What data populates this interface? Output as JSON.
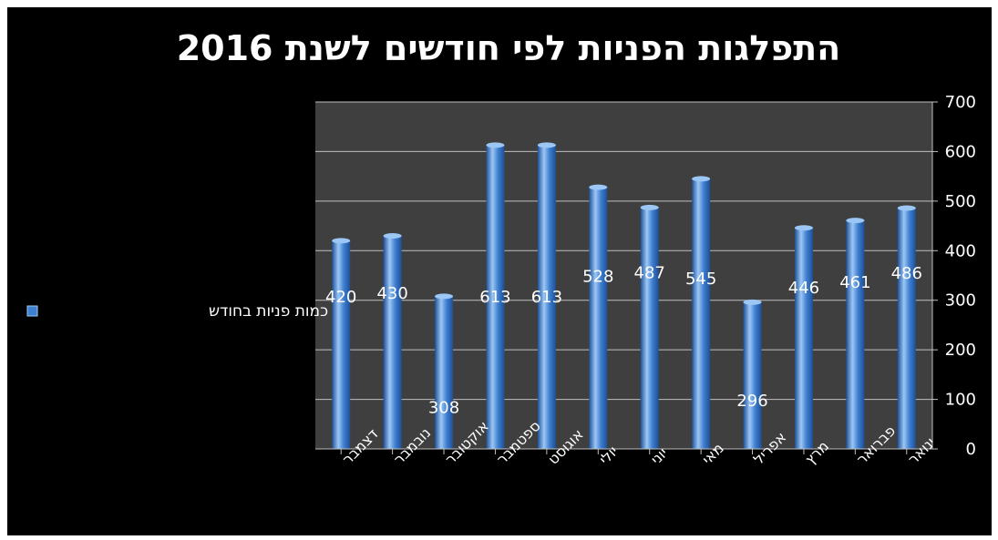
{
  "chart_data": {
    "type": "bar",
    "title": "התפלגות הפניות לפי חודשים לשנת 2016",
    "categories": [
      "ינואר",
      "פברואר",
      "מרץ",
      "אפריל",
      "מאי",
      "יוני",
      "יולי",
      "אוגוסט",
      "ספטמבר",
      "אוקטובר",
      "נובמבר",
      "דצמבר"
    ],
    "series": [
      {
        "name": "כמות פניות בחודש",
        "values": [
          486,
          461,
          446,
          296,
          545,
          487,
          528,
          613,
          613,
          308,
          430,
          420
        ]
      }
    ],
    "ylim": [
      0,
      700
    ],
    "yticks": [
      0,
      100,
      200,
      300,
      400,
      500,
      600,
      700
    ],
    "y_axis_side": "right",
    "category_order": "right-to-left",
    "grid": true,
    "legend_position": "left",
    "colors": {
      "background": "#000000",
      "plot_area": "#3f3f3f",
      "bar": "#3f7fd0",
      "bar_light": "#9cc7f5",
      "bar_dark": "#1d4f96",
      "gridline": "#bfbfbf",
      "text": "#ffffff"
    }
  }
}
